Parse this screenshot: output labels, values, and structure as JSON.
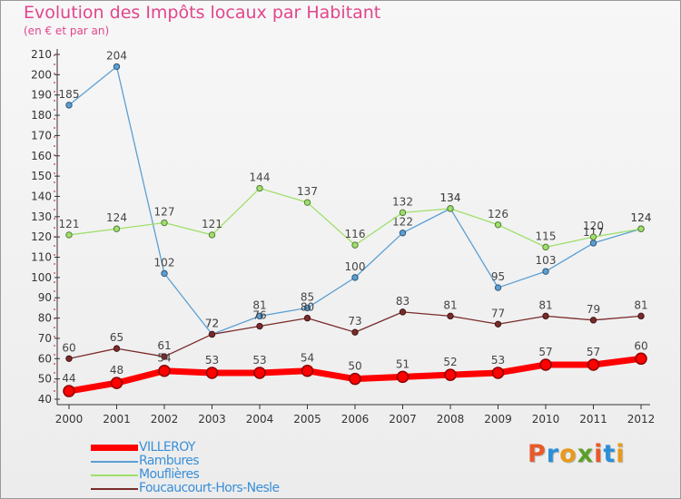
{
  "title": "Evolution des Impôts locaux par Habitant",
  "subtitle": "(en € et par an)",
  "logo": {
    "letters": [
      "P",
      "r",
      "o",
      "x",
      "i",
      "t",
      "i"
    ],
    "colors": [
      "#e85a2a",
      "#2a8fd8",
      "#e89a1a",
      "#5aa02a",
      "#e85a2a",
      "#2a8fd8",
      "#e89a1a"
    ]
  },
  "chart_data": {
    "type": "line",
    "x": [
      "2000",
      "2001",
      "2002",
      "2003",
      "2004",
      "2005",
      "2006",
      "2007",
      "2008",
      "2009",
      "2010",
      "2011",
      "2012"
    ],
    "ylim": [
      40,
      210
    ],
    "yticks": [
      40,
      50,
      60,
      70,
      80,
      90,
      100,
      110,
      120,
      130,
      140,
      150,
      160,
      170,
      180,
      190,
      200,
      210
    ],
    "grid": false,
    "legend_position": "bottom",
    "series": [
      {
        "name": "VILLEROY",
        "color": "#ff0000",
        "thick": true,
        "values": [
          44,
          48,
          54,
          53,
          53,
          54,
          50,
          51,
          52,
          53,
          57,
          57,
          60
        ]
      },
      {
        "name": "Rambures",
        "color": "#5a9fd4",
        "thick": false,
        "values": [
          185,
          204,
          102,
          72,
          81,
          85,
          100,
          122,
          134,
          95,
          103,
          117,
          124
        ]
      },
      {
        "name": "Mouflières",
        "color": "#9ee06a",
        "thick": false,
        "values": [
          121,
          124,
          127,
          121,
          144,
          137,
          116,
          132,
          134,
          126,
          115,
          120,
          124
        ]
      },
      {
        "name": "Foucaucourt-Hors-Nesle",
        "color": "#7a2a2a",
        "thick": false,
        "values": [
          60,
          65,
          61,
          72,
          76,
          80,
          73,
          83,
          81,
          77,
          81,
          79,
          81
        ]
      }
    ]
  }
}
